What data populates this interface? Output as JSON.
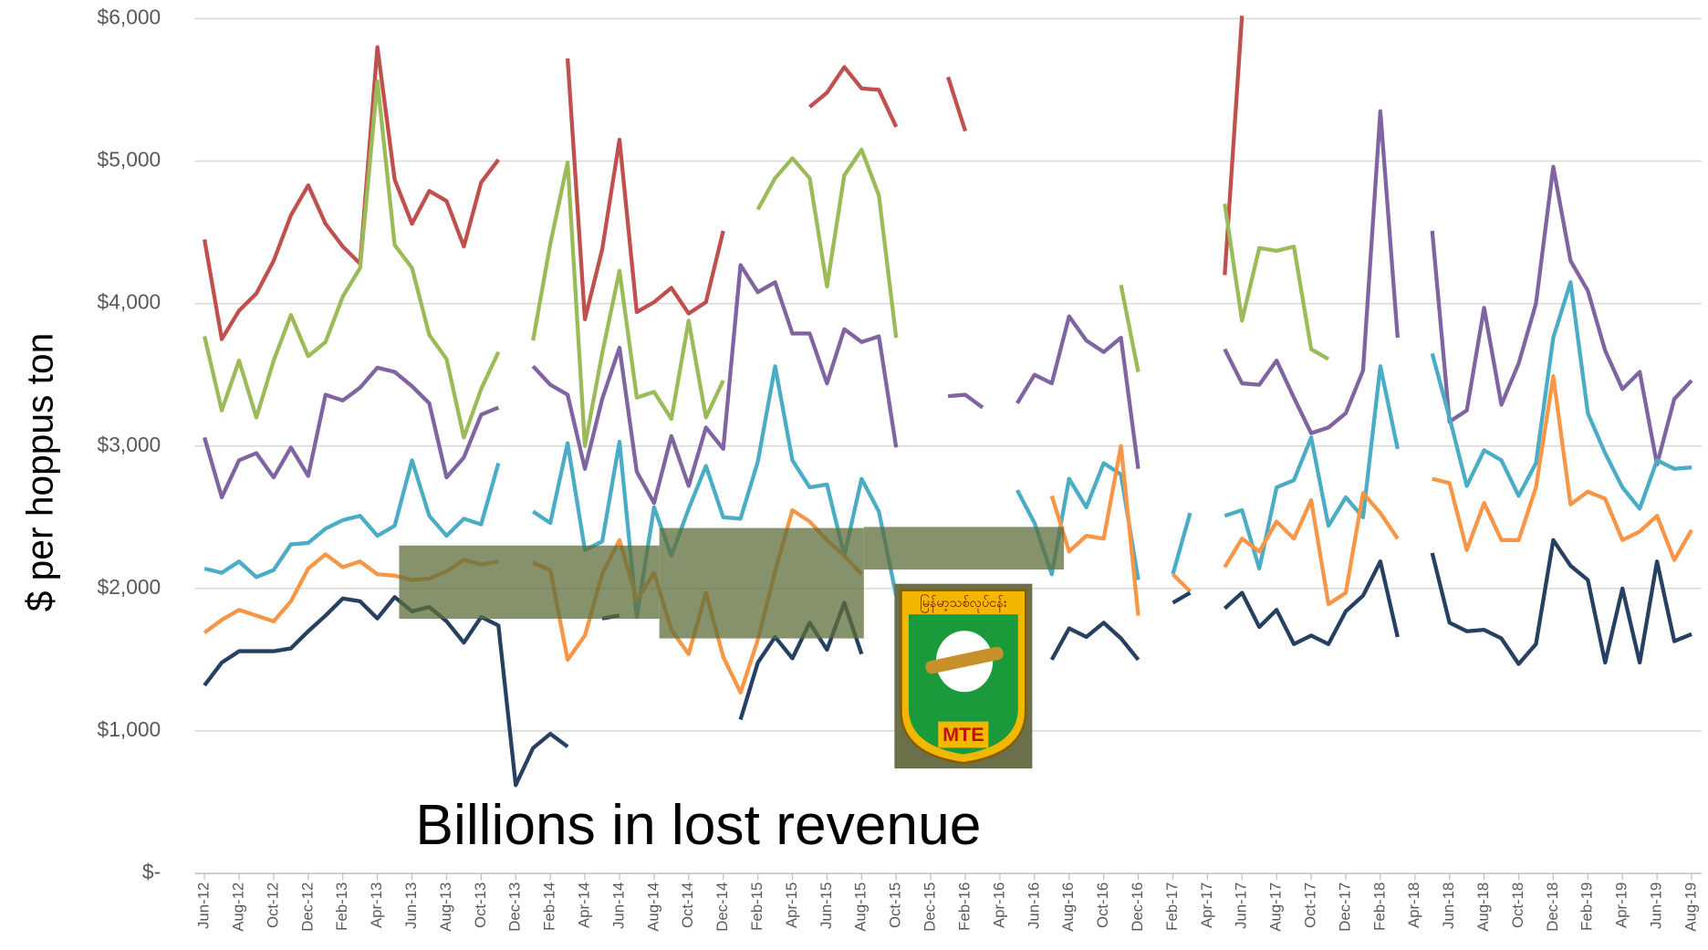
{
  "chart_data": {
    "type": "line",
    "ylabel": "$ per hoppus ton",
    "annotation": "Billions in lost revenue",
    "logo_text": "မြန်မာ့သစ်လုပ်ငန်း",
    "logo_label": "MTE",
    "grid": true,
    "ylim": [
      0,
      6000
    ],
    "yticks": [
      {
        "value": 0,
        "label": "$-"
      },
      {
        "value": 1000,
        "label": "$1,000"
      },
      {
        "value": 2000,
        "label": "$2,000"
      },
      {
        "value": 3000,
        "label": "$3,000"
      },
      {
        "value": 4000,
        "label": "$4,000"
      },
      {
        "value": 5000,
        "label": "$5,000"
      },
      {
        "value": 6000,
        "label": "$6,000"
      }
    ],
    "categories": [
      "Jun-12",
      null,
      "Aug-12",
      null,
      "Oct-12",
      null,
      "Dec-12",
      null,
      "Feb-13",
      null,
      "Apr-13",
      null,
      "Jun-13",
      null,
      "Aug-13",
      null,
      "Oct-13",
      null,
      "Dec-13",
      null,
      "Feb-14",
      null,
      "Apr-14",
      null,
      "Jun-14",
      null,
      "Aug-14",
      null,
      "Oct-14",
      null,
      "Dec-14",
      null,
      "Feb-15",
      null,
      "Apr-15",
      null,
      "Jun-15",
      null,
      "Aug-15",
      null,
      "Oct-15",
      null,
      "Dec-15",
      null,
      "Feb-16",
      null,
      "Apr-16",
      null,
      "Jun-16",
      null,
      "Aug-16",
      null,
      "Oct-16",
      null,
      "Dec-16",
      null,
      "Feb-17",
      null,
      "Apr-17",
      null,
      "Jun-17",
      null,
      "Aug-17",
      null,
      "Oct-17",
      null,
      "Dec-17",
      null,
      "Feb-18",
      null,
      "Apr-18",
      null,
      "Jun-18",
      null,
      "Aug-18",
      null,
      "Oct-18",
      null,
      "Dec-18",
      null,
      "Feb-19",
      null,
      "Apr-19",
      null,
      "Jun-19",
      null,
      "Aug-19"
    ],
    "series": [
      {
        "color": "#c0504d",
        "values": [
          4450,
          3750,
          3950,
          4070,
          4300,
          4620,
          4830,
          4560,
          4400,
          4280,
          5800,
          4870,
          4560,
          4790,
          4720,
          4400,
          4850,
          5010,
          null,
          null,
          null,
          5720,
          3890,
          4380,
          5150,
          3940,
          4010,
          4110,
          3930,
          4010,
          4510,
          null,
          null,
          null,
          null,
          5380,
          5480,
          5660,
          5510,
          5500,
          5240,
          null,
          null,
          5590,
          5210,
          null,
          null,
          null,
          null,
          null,
          null,
          null,
          null,
          null,
          null,
          null,
          null,
          null,
          null,
          4200,
          6020,
          null,
          null,
          null,
          null,
          null,
          null,
          null,
          null,
          null,
          null,
          null,
          null,
          null,
          null,
          null,
          null,
          null,
          null,
          null,
          null,
          null,
          null,
          null,
          null,
          null,
          null
        ]
      },
      {
        "color": "#9bbb59",
        "values": [
          3770,
          3250,
          3600,
          3200,
          3600,
          3920,
          3630,
          3730,
          4050,
          4250,
          5560,
          4410,
          4250,
          3780,
          3610,
          3060,
          3400,
          3660,
          null,
          3740,
          4420,
          4990,
          3000,
          3650,
          4230,
          3340,
          3380,
          3190,
          3880,
          3200,
          3460,
          null,
          4660,
          4880,
          5020,
          4880,
          4120,
          4900,
          5080,
          4760,
          3760,
          null,
          null,
          null,
          null,
          null,
          null,
          null,
          null,
          null,
          null,
          null,
          null,
          4130,
          3520,
          null,
          null,
          null,
          null,
          4700,
          3880,
          4390,
          4370,
          4400,
          3680,
          3610,
          null,
          null,
          null,
          null,
          null,
          null,
          null,
          null,
          null,
          null,
          null,
          null,
          null,
          null,
          null,
          null,
          null,
          null,
          null,
          null,
          null
        ]
      },
      {
        "color": "#8064a2",
        "values": [
          3060,
          2640,
          2900,
          2950,
          2780,
          2990,
          2790,
          3360,
          3320,
          3410,
          3550,
          3520,
          3420,
          3300,
          2780,
          2920,
          3220,
          3270,
          null,
          3560,
          3430,
          3360,
          2840,
          3330,
          3690,
          2820,
          2600,
          3070,
          2720,
          3130,
          2980,
          4270,
          4080,
          4150,
          3790,
          3790,
          3440,
          3820,
          3730,
          3770,
          2990,
          null,
          null,
          3350,
          3360,
          3270,
          null,
          3300,
          3500,
          3440,
          3910,
          3740,
          3660,
          3760,
          2840,
          null,
          null,
          null,
          null,
          3680,
          3440,
          3430,
          3600,
          3340,
          3090,
          3130,
          3230,
          3530,
          5350,
          3760,
          null,
          4510,
          3170,
          3250,
          3970,
          3290,
          3580,
          4000,
          4960,
          4300,
          4090,
          3670,
          3400,
          3520,
          2870,
          3330,
          3460
        ]
      },
      {
        "color": "#4bacc6",
        "values": [
          2140,
          2110,
          2190,
          2080,
          2130,
          2310,
          2320,
          2420,
          2480,
          2510,
          2370,
          2440,
          2900,
          2510,
          2370,
          2490,
          2450,
          2880,
          null,
          2540,
          2460,
          3020,
          2270,
          2330,
          3030,
          1800,
          2570,
          2230,
          2560,
          2860,
          2500,
          2490,
          2890,
          3560,
          2900,
          2710,
          2730,
          2230,
          2770,
          2540,
          1950,
          null,
          null,
          null,
          null,
          null,
          null,
          2690,
          2460,
          2100,
          2770,
          2570,
          2880,
          2800,
          2060,
          null,
          2100,
          2530,
          null,
          2510,
          2550,
          2140,
          2710,
          2760,
          3060,
          2440,
          2640,
          2500,
          3560,
          2980,
          null,
          3650,
          3200,
          2720,
          2970,
          2900,
          2650,
          2880,
          3760,
          4150,
          3230,
          2950,
          2710,
          2560,
          2900,
          2840,
          2850
        ]
      },
      {
        "color": "#f79646",
        "values": [
          1690,
          1780,
          1850,
          1810,
          1770,
          1910,
          2140,
          2240,
          2150,
          2190,
          2100,
          2090,
          2060,
          2070,
          2120,
          2200,
          2170,
          2190,
          null,
          2180,
          2130,
          1500,
          1670,
          2100,
          2340,
          1920,
          2110,
          1710,
          1540,
          1970,
          1520,
          1270,
          1640,
          2120,
          2550,
          2470,
          2340,
          2230,
          2100,
          null,
          null,
          null,
          null,
          null,
          null,
          null,
          null,
          null,
          null,
          2650,
          2260,
          2370,
          2350,
          3000,
          1810,
          null,
          2100,
          1980,
          null,
          2150,
          2350,
          2260,
          2470,
          2350,
          2620,
          1890,
          1970,
          2670,
          2530,
          2350,
          null,
          2770,
          2740,
          2270,
          2600,
          2340,
          2340,
          2710,
          3490,
          2590,
          2680,
          2630,
          2340,
          2400,
          2510,
          2200,
          2410
        ]
      },
      {
        "color": "#254061",
        "values": [
          1320,
          1480,
          1560,
          1560,
          1560,
          1580,
          1700,
          1810,
          1930,
          1910,
          1790,
          1940,
          1840,
          1870,
          1770,
          1620,
          1800,
          1740,
          620,
          880,
          980,
          890,
          null,
          1790,
          1810,
          null,
          null,
          null,
          null,
          null,
          null,
          1080,
          1480,
          1660,
          1510,
          1760,
          1570,
          1900,
          1540,
          null,
          null,
          null,
          null,
          null,
          null,
          null,
          null,
          null,
          null,
          1500,
          1720,
          1660,
          1760,
          1650,
          1500,
          null,
          1900,
          1970,
          null,
          1860,
          1970,
          1730,
          1850,
          1610,
          1670,
          1610,
          1840,
          1950,
          2190,
          1660,
          null,
          2250,
          1760,
          1700,
          1710,
          1650,
          1470,
          1610,
          2340,
          2160,
          2060,
          1480,
          2000,
          1480,
          2190,
          1630,
          1680
        ]
      }
    ]
  }
}
